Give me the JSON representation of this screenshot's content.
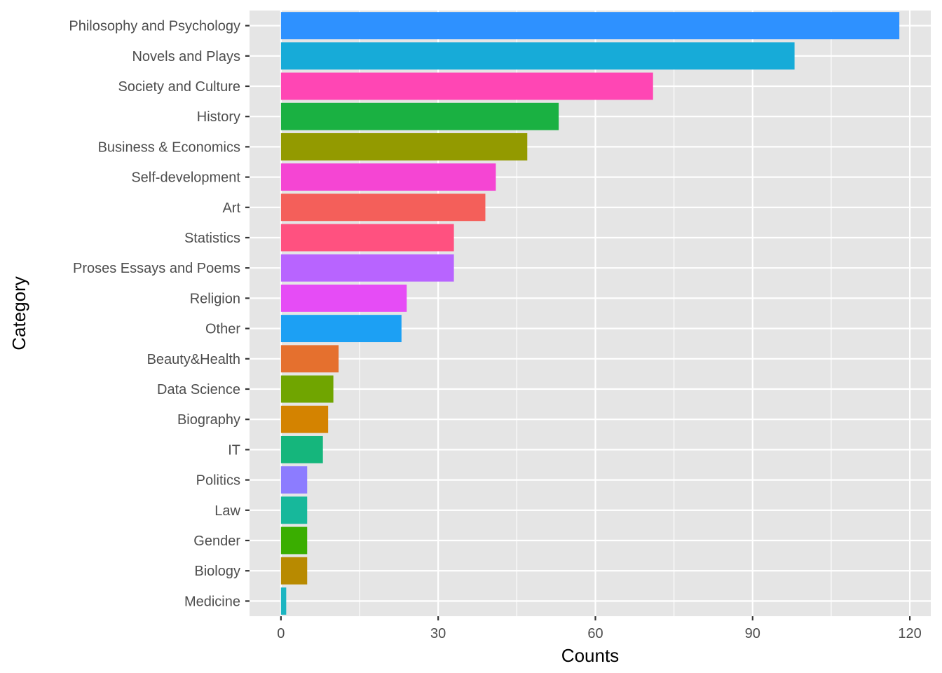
{
  "chart_data": {
    "type": "bar",
    "orientation": "horizontal",
    "xlabel": "Counts",
    "ylabel": "Category",
    "xlim": [
      -6,
      124
    ],
    "xticks": [
      0,
      30,
      60,
      90,
      120
    ],
    "xtick_labels": [
      "0",
      "30",
      "60",
      "90",
      "120"
    ],
    "grid": true,
    "legend": "none",
    "categories": [
      "Philosophy and Psychology",
      "Novels and Plays",
      "Society and Culture",
      "History",
      "Business & Economics",
      "Self-development",
      "Art",
      "Statistics",
      "Proses Essays and Poems",
      "Religion",
      "Other",
      "Beauty&Health",
      "Data Science",
      "Biography",
      "IT",
      "Politics",
      "Law",
      "Gender",
      "Biology",
      "Medicine"
    ],
    "values": [
      118,
      98,
      71,
      53,
      47,
      41,
      39,
      33,
      33,
      24,
      23,
      11,
      10,
      9,
      8,
      5,
      5,
      5,
      5,
      1
    ],
    "colors": [
      "#2E91FF",
      "#17ABD8",
      "#FF46B4",
      "#1AB142",
      "#939A00",
      "#F545D3",
      "#F45F5A",
      "#FF5180",
      "#B864FF",
      "#E64CF6",
      "#1CA0F4",
      "#E5702E",
      "#70A500",
      "#D48300",
      "#15B67C",
      "#8C7CFF",
      "#17B89B",
      "#3AAE00",
      "#B88A00",
      "#1BB5C1"
    ],
    "panel_background": "#E5E5E5",
    "grid_color": "#FFFFFF"
  }
}
